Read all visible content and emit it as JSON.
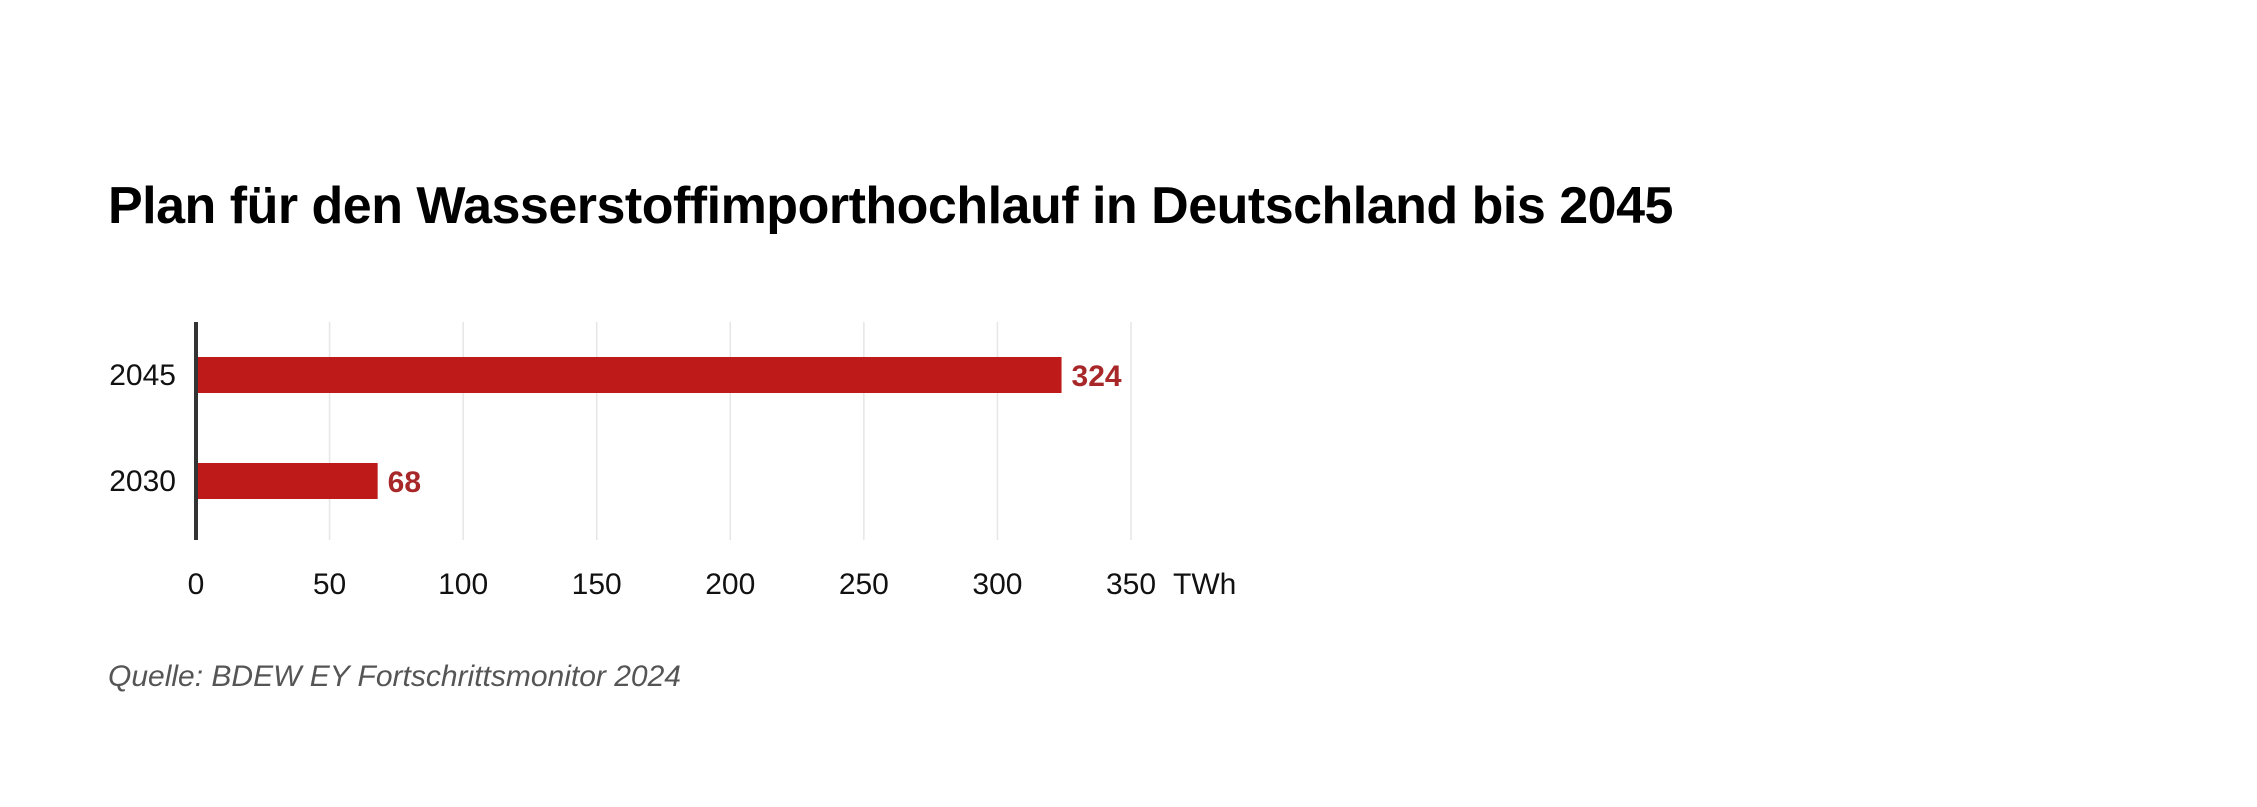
{
  "title": "Plan für den Wasserstoffimporthochlauf in Deutschland bis 2045",
  "source": "Quelle: BDEW EY Fortschrittsmonitor 2024",
  "colors": {
    "bar": "#bf1a1a",
    "value_label": "#a8282a",
    "axis": "#333333",
    "grid": "#e6e6e6"
  },
  "chart_data": {
    "type": "bar",
    "orientation": "horizontal",
    "title": "Plan für den Wasserstoffimporthochlauf in Deutschland bis 2045",
    "categories": [
      "2045",
      "2030"
    ],
    "values": [
      324,
      68
    ],
    "value_labels": [
      "324",
      "68"
    ],
    "xlabel": "TWh",
    "ylabel": "",
    "xlim": [
      0,
      350
    ],
    "x_ticks": [
      "0",
      "50",
      "100",
      "150",
      "200",
      "250",
      "300",
      "350"
    ],
    "grid": true,
    "legend": "none"
  }
}
